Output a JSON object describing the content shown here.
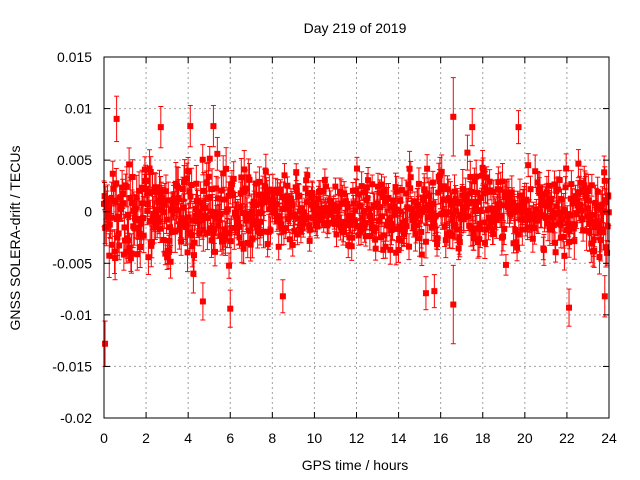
{
  "chart_data": {
    "type": "scatter",
    "title": "Day 219 of 2019",
    "xlabel": "GPS time / hours",
    "ylabel": "GNSS SOLERA-drift / TECUs",
    "xlim": [
      0,
      24
    ],
    "ylim": [
      -0.02,
      0.015
    ],
    "x_ticks": [
      0,
      2,
      4,
      6,
      8,
      10,
      12,
      14,
      16,
      18,
      20,
      22,
      24
    ],
    "x_tick_labels": [
      "0",
      "2",
      "4",
      "6",
      "8",
      "10",
      "12",
      "14",
      "16",
      "18",
      "20",
      "22",
      "24"
    ],
    "y_ticks": [
      0.015,
      0.01,
      0.005,
      0,
      -0.005,
      -0.01,
      -0.015,
      -0.02
    ],
    "y_tick_labels": [
      "0.015",
      "0.01",
      "0.005",
      "0",
      "-0.005",
      "-0.01",
      "-0.015",
      "-0.02"
    ],
    "grid": true,
    "series_color": "#ff0000",
    "series": [
      {
        "name": "SOLERA drift",
        "sampling_interval_hours": 0.0833,
        "noise_profile": [
          {
            "x": 0,
            "sigma": 0.0032
          },
          {
            "x": 2,
            "sigma": 0.003
          },
          {
            "x": 4,
            "sigma": 0.003
          },
          {
            "x": 6,
            "sigma": 0.0031
          },
          {
            "x": 8,
            "sigma": 0.0026
          },
          {
            "x": 10,
            "sigma": 0.0018
          },
          {
            "x": 12,
            "sigma": 0.002
          },
          {
            "x": 14,
            "sigma": 0.0024
          },
          {
            "x": 16,
            "sigma": 0.0028
          },
          {
            "x": 18,
            "sigma": 0.0026
          },
          {
            "x": 20,
            "sigma": 0.0024
          },
          {
            "x": 22,
            "sigma": 0.0025
          },
          {
            "x": 24,
            "sigma": 0.003
          }
        ],
        "notable_points": [
          {
            "x": 0.05,
            "y": -0.0128,
            "err": 0.0022
          },
          {
            "x": 0.6,
            "y": 0.009,
            "err": 0.0022
          },
          {
            "x": 2.7,
            "y": 0.0082,
            "err": 0.002
          },
          {
            "x": 4.1,
            "y": 0.0083,
            "err": 0.002
          },
          {
            "x": 4.7,
            "y": -0.0087,
            "err": 0.0018
          },
          {
            "x": 5.2,
            "y": 0.0083,
            "err": 0.002
          },
          {
            "x": 6.0,
            "y": -0.0094,
            "err": 0.0018
          },
          {
            "x": 8.5,
            "y": -0.0082,
            "err": 0.0016
          },
          {
            "x": 15.3,
            "y": -0.0079,
            "err": 0.0016
          },
          {
            "x": 15.7,
            "y": -0.0077,
            "err": 0.0016
          },
          {
            "x": 16.6,
            "y": 0.0092,
            "err": 0.0038
          },
          {
            "x": 16.6,
            "y": -0.009,
            "err": 0.0038
          },
          {
            "x": 17.5,
            "y": 0.0082,
            "err": 0.0018
          },
          {
            "x": 19.7,
            "y": 0.0082,
            "err": 0.0016
          },
          {
            "x": 22.1,
            "y": -0.0093,
            "err": 0.0018
          },
          {
            "x": 23.8,
            "y": -0.0082,
            "err": 0.002
          }
        ]
      }
    ]
  }
}
